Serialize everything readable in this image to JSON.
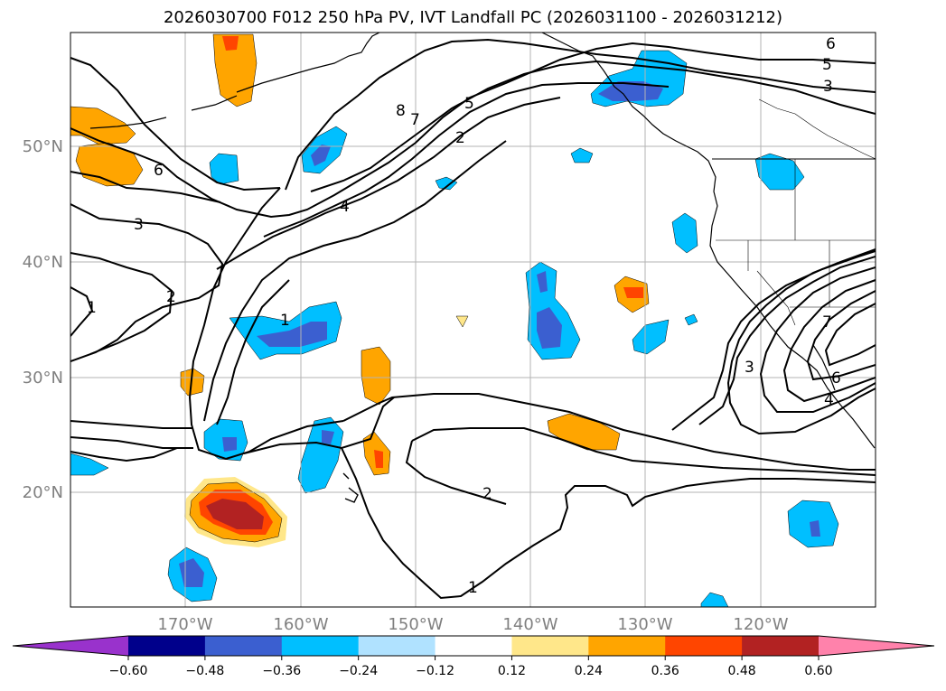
{
  "title": "2026030700 F012 250 hPa PV, IVT Landfall PC (2026031100 - 2026031212)",
  "lat_labels": [
    "50°N",
    "40°N",
    "30°N",
    "20°N"
  ],
  "lon_labels": [
    "170°W",
    "160°W",
    "150°W",
    "140°W",
    "130°W",
    "120°W"
  ],
  "contour_labels": [
    "6",
    "5",
    "3",
    "8",
    "7",
    "5",
    "2",
    "6",
    "3",
    "4",
    "2",
    "1",
    "1",
    "3",
    "7",
    "6",
    "4",
    "2",
    "1"
  ],
  "colorbar": {
    "ticks": [
      "−0.60",
      "−0.48",
      "−0.36",
      "−0.24",
      "−0.12",
      "0.12",
      "0.24",
      "0.36",
      "0.48",
      "0.60"
    ],
    "colors": [
      "#9932cc",
      "#00008b",
      "#3b5fd0",
      "#00bfff",
      "#b0e2ff",
      "#ffffff",
      "#ffe78a",
      "#ffa500",
      "#ff4500",
      "#b22222",
      "#ff82ab"
    ]
  }
}
